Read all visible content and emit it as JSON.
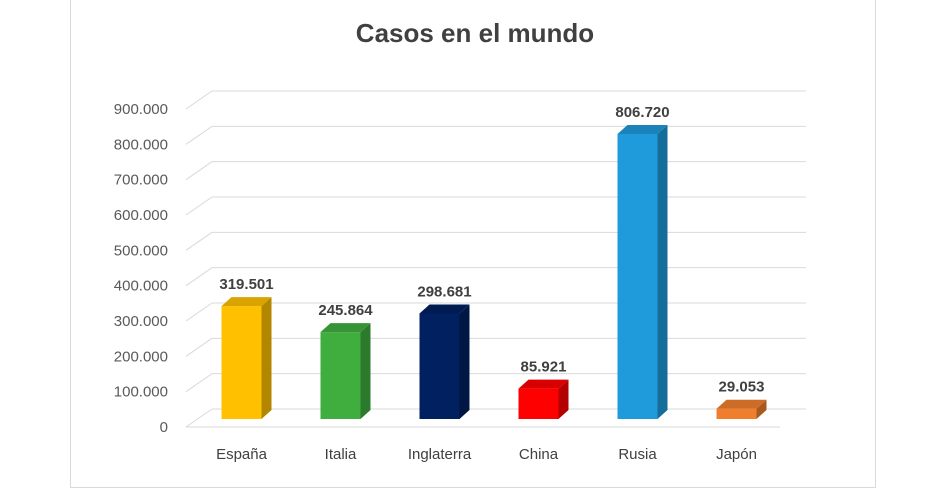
{
  "chart_data": {
    "type": "bar",
    "title": "Casos en el mundo",
    "categories": [
      "España",
      "Italia",
      "Inglaterra",
      "China",
      "Rusia",
      "Japón"
    ],
    "values": [
      319501,
      245864,
      298681,
      85921,
      806720,
      29053
    ],
    "value_labels": [
      "319.501",
      "245.864",
      "298.681",
      "85.921",
      "806.720",
      "29.053"
    ],
    "colors": [
      "#FFC000",
      "#3FAE3F",
      "#002060",
      "#FF0000",
      "#1F9BDB",
      "#F07F2D"
    ],
    "ylim": [
      0,
      900000
    ],
    "yticks": [
      0,
      100000,
      200000,
      300000,
      400000,
      500000,
      600000,
      700000,
      800000,
      900000
    ],
    "ytick_labels": [
      "0",
      "100.000",
      "200.000",
      "300.000",
      "400.000",
      "500.000",
      "600.000",
      "700.000",
      "800.000",
      "900.000"
    ],
    "xlabel": "",
    "ylabel": "",
    "grid": true,
    "legend": false
  }
}
